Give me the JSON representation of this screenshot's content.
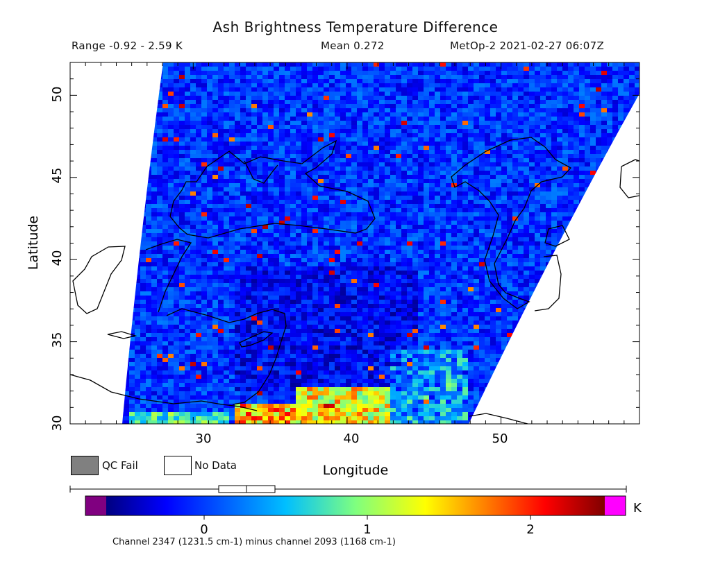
{
  "header": {
    "title": "Ash Brightness Temperature Difference",
    "range": "Range -0.92 - 2.59 K",
    "mean": "Mean 0.272",
    "satellite_time": "MetOp-2 2021-02-27 06:07Z"
  },
  "map": {
    "xlabel": "Longitude",
    "ylabel": "Latitude",
    "x_ticks": [
      "30",
      "40",
      "50"
    ],
    "y_ticks": [
      "30",
      "35",
      "40",
      "45",
      "50"
    ],
    "x_range": [
      21.5,
      58.5
    ],
    "y_range": [
      30,
      52
    ]
  },
  "legend": {
    "qc_fail": "QC Fail",
    "no_data": "No Data",
    "qc_fail_color": "#808080",
    "no_data_color": "#ffffff"
  },
  "colorbar": {
    "unit": "K",
    "ticks": [
      "0",
      "1",
      "2"
    ],
    "under_color": "#800080",
    "over_color": "#ff00ff",
    "footer": "Channel 2347 (1231.5 cm-1) minus channel 2093 (1168 cm-1)"
  }
}
